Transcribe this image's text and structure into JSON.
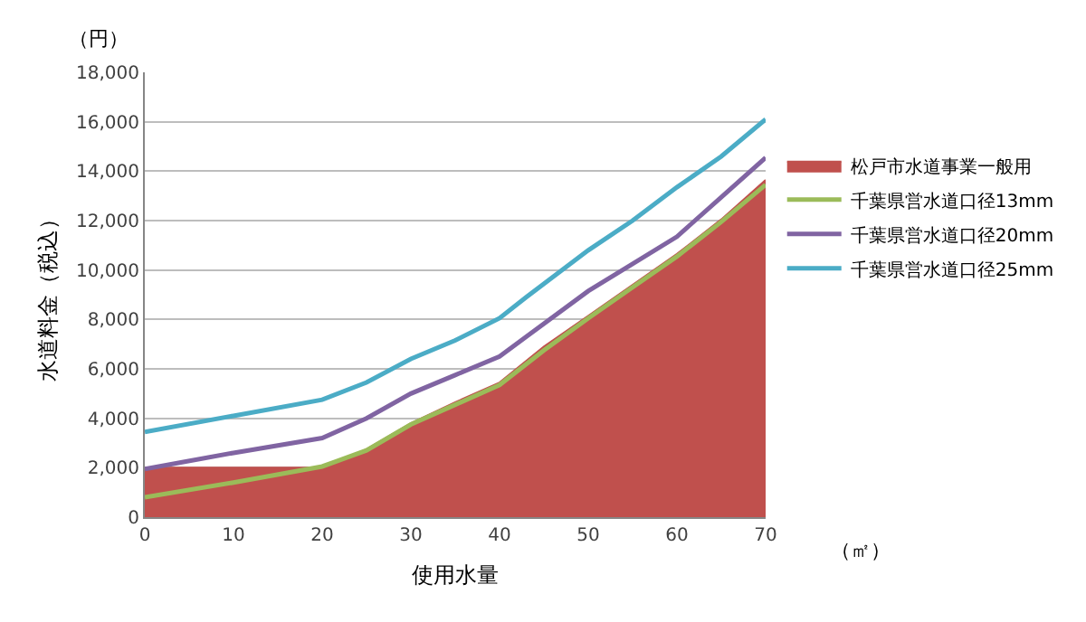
{
  "chart_data": {
    "type": "line",
    "xlabel": "使用水量",
    "ylabel": "水道料金（税込）",
    "annotations": [
      "（円）",
      "（㎡）"
    ],
    "series": [
      {
        "name": "松戸市水道事業一般用",
        "type": "area",
        "color": "#c0504d",
        "x": [
          0,
          20,
          25,
          30,
          35,
          40,
          45,
          50,
          55,
          60,
          65,
          70
        ],
        "values": [
          2000,
          2000,
          2750,
          3800,
          4650,
          5450,
          6900,
          8150,
          9400,
          10650,
          12050,
          13650
        ]
      },
      {
        "name": "千葉県営水道口径13mm",
        "color": "#9bbb59",
        "x": [
          0,
          10,
          20,
          25,
          30,
          35,
          40,
          45,
          50,
          55,
          60,
          65,
          70
        ],
        "values": [
          800,
          1400,
          2050,
          2700,
          3750,
          4550,
          5350,
          6750,
          8050,
          9300,
          10550,
          11950,
          13450
        ]
      },
      {
        "name": "千葉県営水道口径20mm",
        "color": "#8064a2",
        "x": [
          0,
          10,
          20,
          25,
          30,
          35,
          40,
          43,
          50,
          55,
          60,
          65,
          70
        ],
        "values": [
          1950,
          2600,
          3200,
          4000,
          5000,
          5750,
          6500,
          7300,
          9150,
          10250,
          11350,
          12950,
          14550
        ]
      },
      {
        "name": "千葉県営水道口径25mm",
        "color": "#4bacc6",
        "x": [
          0,
          10,
          20,
          25,
          30,
          35,
          40,
          43,
          50,
          55,
          60,
          65,
          70
        ],
        "values": [
          3450,
          4100,
          4750,
          5450,
          6400,
          7150,
          8050,
          8900,
          10800,
          12000,
          13350,
          14600,
          16100
        ]
      }
    ],
    "xlim": [
      0,
      70
    ],
    "xticks": [
      0,
      10,
      20,
      30,
      40,
      50,
      60,
      70
    ],
    "ylim": [
      0,
      18000
    ],
    "yticks": [
      {
        "value": 0,
        "label": "0"
      },
      {
        "value": 2000,
        "label": "2,000"
      },
      {
        "value": 4000,
        "label": "4,000"
      },
      {
        "value": 6000,
        "label": "6,000"
      },
      {
        "value": 8000,
        "label": "8,000"
      },
      {
        "value": 10000,
        "label": "10,000"
      },
      {
        "value": 12000,
        "label": "12,000"
      },
      {
        "value": 14000,
        "label": "14,000"
      },
      {
        "value": 16000,
        "label": "16,000"
      },
      {
        "value": 18000,
        "label": "18,000"
      }
    ],
    "grid": "y",
    "legend": "right",
    "marker": "none",
    "line_style": "solid"
  }
}
